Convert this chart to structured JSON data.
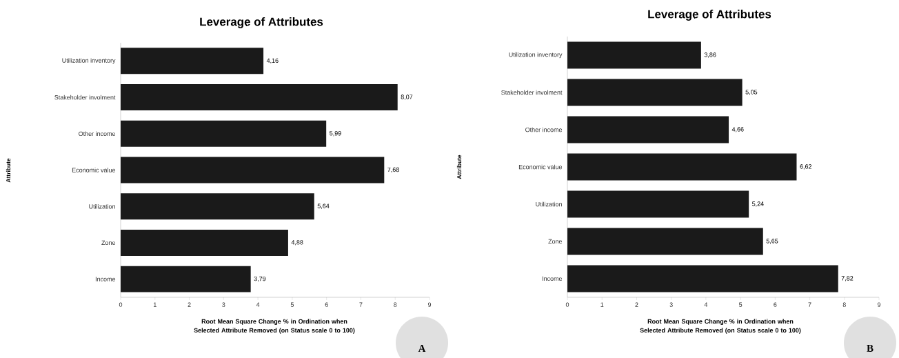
{
  "chart_data": [
    {
      "type": "bar",
      "orientation": "horizontal",
      "title": "Leverage of Attributes",
      "xlabel": "Root Mean Square Change % in Ordination when Selected Attribute Removed (on Status scale 0 to 100)",
      "ylabel": "Attribute",
      "categories": [
        "Utilization inventory",
        "Stakeholder involment",
        "Other income",
        "Economic value",
        "Utilization",
        "Zone",
        "Income"
      ],
      "values": [
        4.16,
        8.07,
        5.99,
        7.68,
        5.64,
        4.88,
        3.79
      ],
      "value_labels": [
        "4,16",
        "8,07",
        "5,99",
        "7,68",
        "5,64",
        "4,88",
        "3,79"
      ],
      "color": "#1a1a1a",
      "xlim": [
        0,
        9
      ],
      "xticks": [
        0,
        1,
        2,
        3,
        4,
        5,
        6,
        7,
        8,
        9
      ],
      "annotations": [
        "A"
      ]
    },
    {
      "type": "bar",
      "orientation": "horizontal",
      "title": "Leverage of Attributes",
      "xlabel": "Root Mean Square Change % in Ordination when Selected Attribute Removed (on Status scale 0 to 100)",
      "ylabel": "Attribute",
      "categories": [
        "Utilization inventory",
        "Stakeholder involment",
        "Other income",
        "Economic value",
        "Utilization",
        "Zone",
        "Income"
      ],
      "values": [
        3.86,
        5.05,
        4.66,
        6.62,
        5.24,
        5.65,
        7.82
      ],
      "value_labels": [
        "3,86",
        "5,05",
        "4,66",
        "6,62",
        "5,24",
        "5,65",
        "7,82"
      ],
      "color": "#1a1a1a",
      "xlim": [
        0,
        9
      ],
      "xticks": [
        0,
        1,
        2,
        3,
        4,
        5,
        6,
        7,
        8,
        9
      ],
      "annotations": [
        "B"
      ]
    }
  ]
}
